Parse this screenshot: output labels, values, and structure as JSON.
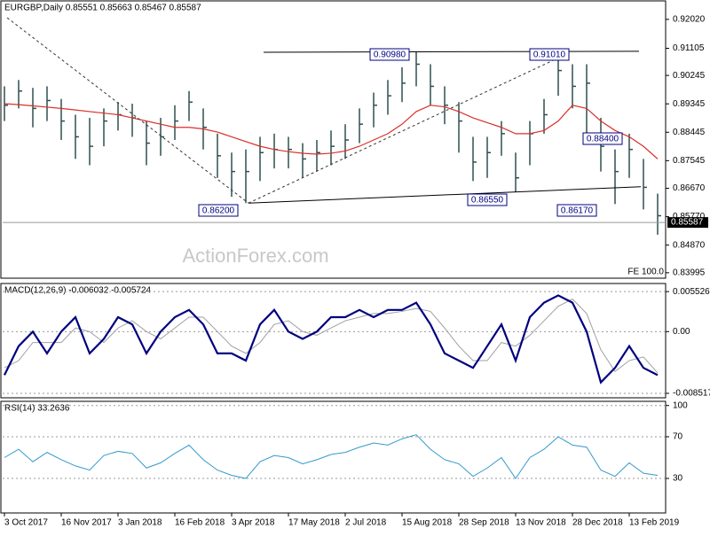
{
  "chart_data": [
    {
      "type": "ohlc",
      "title": "EURGBP,Daily 0.85551 0.85663 0.85467 0.85587",
      "watermark": "ActionForex.com",
      "note": "FE 100.0",
      "color": "#2f4f4f",
      "ma_color": "#d9302a",
      "categories": [
        "3 Oct 2017",
        null,
        null,
        null,
        "16 Nov 2017",
        null,
        null,
        null,
        "3 Jan 2018",
        null,
        null,
        null,
        "16 Feb 2018",
        null,
        null,
        null,
        "3 Apr 2018",
        null,
        null,
        null,
        "17 May 2018",
        null,
        null,
        null,
        "2 Jul 2018",
        null,
        null,
        null,
        "15 Aug 2018",
        null,
        null,
        null,
        "28 Sep 2018",
        null,
        null,
        null,
        "13 Nov 2018",
        null,
        null,
        null,
        "28 Dec 2018",
        null,
        null,
        null,
        "13 Feb 2019",
        null,
        null
      ],
      "high": [
        0.899,
        0.901,
        0.8985,
        0.899,
        0.895,
        0.89,
        0.889,
        0.892,
        0.894,
        0.8935,
        0.888,
        0.889,
        0.893,
        0.8975,
        0.892,
        0.884,
        0.878,
        0.879,
        0.883,
        0.884,
        0.883,
        0.881,
        0.882,
        0.885,
        0.887,
        0.892,
        0.897,
        0.901,
        0.905,
        0.9098,
        0.906,
        0.899,
        0.894,
        0.883,
        0.883,
        0.888,
        0.878,
        0.888,
        0.895,
        0.9101,
        0.906,
        0.906,
        0.889,
        0.879,
        0.884,
        0.876,
        0.865
      ],
      "low": [
        0.888,
        0.892,
        0.886,
        0.888,
        0.882,
        0.876,
        0.874,
        0.88,
        0.885,
        0.883,
        0.874,
        0.877,
        0.882,
        0.888,
        0.879,
        0.87,
        0.864,
        0.862,
        0.869,
        0.873,
        0.873,
        0.87,
        0.872,
        0.874,
        0.876,
        0.881,
        0.886,
        0.89,
        0.894,
        0.899,
        0.893,
        0.887,
        0.878,
        0.869,
        0.87,
        0.877,
        0.8655,
        0.874,
        0.884,
        0.896,
        0.892,
        0.884,
        0.872,
        0.8617,
        0.87,
        0.86,
        0.852
      ],
      "close": [
        0.893,
        0.8975,
        0.892,
        0.8945,
        0.888,
        0.883,
        0.88,
        0.888,
        0.89,
        0.889,
        0.881,
        0.883,
        0.888,
        0.894,
        0.886,
        0.877,
        0.872,
        0.872,
        0.878,
        0.879,
        0.879,
        0.876,
        0.878,
        0.88,
        0.882,
        0.887,
        0.893,
        0.896,
        0.9,
        0.906,
        0.899,
        0.893,
        0.888,
        0.875,
        0.878,
        0.884,
        0.87,
        0.884,
        0.89,
        0.904,
        0.899,
        0.9,
        0.88,
        0.872,
        0.879,
        0.867,
        0.858
      ],
      "ma": [
        0.8935,
        0.8932,
        0.8928,
        0.8924,
        0.892,
        0.8915,
        0.891,
        0.8905,
        0.89,
        0.889,
        0.888,
        0.887,
        0.886,
        0.886,
        0.8855,
        0.8845,
        0.883,
        0.8815,
        0.88,
        0.879,
        0.8783,
        0.8778,
        0.8775,
        0.8778,
        0.8785,
        0.88,
        0.882,
        0.884,
        0.887,
        0.891,
        0.893,
        0.8925,
        0.891,
        0.889,
        0.8875,
        0.886,
        0.884,
        0.884,
        0.885,
        0.888,
        0.893,
        0.892,
        0.888,
        0.885,
        0.883,
        0.88,
        0.876
      ],
      "levels": [
        {
          "value": 0.9098,
          "label": "0.90980"
        },
        {
          "value": 0.9101,
          "label": "0.91010"
        },
        {
          "value": 0.884,
          "label": "0.88400"
        },
        {
          "value": 0.8655,
          "label": "0.86550"
        },
        {
          "value": 0.862,
          "label": "0.86200"
        },
        {
          "value": 0.8617,
          "label": "0.86170"
        }
      ],
      "last": {
        "value": 0.85587,
        "label": "0.85587"
      },
      "ylim": [
        0.8385,
        0.9255
      ],
      "yticks": [
        {
          "value": 0.9202,
          "label": "0.92020"
        },
        {
          "value": 0.91105,
          "label": "0.91105"
        },
        {
          "value": 0.90245,
          "label": "0.90245"
        },
        {
          "value": 0.89345,
          "label": "0.89345"
        },
        {
          "value": 0.88445,
          "label": "0.88445"
        },
        {
          "value": 0.87545,
          "label": "0.87545"
        },
        {
          "value": 0.8667,
          "label": "0.86670"
        },
        {
          "value": 0.8577,
          "label": "0.85770"
        },
        {
          "value": 0.8487,
          "label": "0.84870"
        },
        0.83995
      ]
    },
    {
      "type": "macd",
      "title": "MACD(12,26,9) -0.006032 -0.005724",
      "color": "#000080",
      "signal_color": "#a0a0a0",
      "values": [
        -0.006,
        -0.002,
        0.0,
        -0.003,
        0.0,
        0.002,
        -0.003,
        -0.001,
        0.002,
        0.001,
        -0.003,
        0.0,
        0.002,
        0.003,
        0.001,
        -0.003,
        -0.003,
        -0.004,
        0.001,
        0.003,
        0.0,
        -0.001,
        0.0,
        0.002,
        0.002,
        0.003,
        0.002,
        0.003,
        0.003,
        0.004,
        0.001,
        -0.003,
        -0.004,
        -0.005,
        -0.002,
        0.001,
        -0.004,
        0.002,
        0.004,
        0.005,
        0.004,
        0.0,
        -0.007,
        -0.005,
        -0.002,
        -0.005,
        -0.006
      ],
      "signal": [
        -0.005,
        -0.004,
        -0.0015,
        -0.0015,
        -0.0015,
        0.0005,
        0.0,
        -0.0015,
        0.0005,
        0.0015,
        0.0,
        -0.001,
        0.0005,
        0.002,
        0.002,
        0.0,
        -0.002,
        -0.003,
        -0.0015,
        0.001,
        0.0015,
        0.0,
        -0.0005,
        0.0005,
        0.0015,
        0.002,
        0.0025,
        0.0025,
        0.0028,
        0.0032,
        0.0028,
        0.0005,
        -0.002,
        -0.004,
        -0.004,
        -0.0015,
        -0.002,
        -0.0005,
        0.0015,
        0.0035,
        0.0045,
        0.0025,
        -0.0025,
        -0.0055,
        -0.004,
        -0.0035,
        -0.0057
      ],
      "ylim": [
        -0.00901,
        0.0064
      ],
      "yticks": [
        0.005526,
        {
          "value": 0,
          "label": "0.00"
        },
        -0.008517
      ]
    },
    {
      "type": "rsi",
      "title": "RSI(14) 33.2636",
      "color": "#3399cc",
      "values": [
        50,
        58,
        46,
        55,
        48,
        42,
        38,
        52,
        56,
        54,
        40,
        45,
        54,
        62,
        48,
        38,
        33,
        30,
        46,
        52,
        50,
        44,
        48,
        53,
        55,
        60,
        64,
        62,
        68,
        72,
        58,
        48,
        44,
        32,
        40,
        50,
        30,
        50,
        58,
        70,
        62,
        60,
        38,
        32,
        45,
        35,
        33
      ],
      "ylim": [
        -2.3,
        102.3
      ],
      "yticks": [
        100,
        70,
        30
      ]
    }
  ]
}
